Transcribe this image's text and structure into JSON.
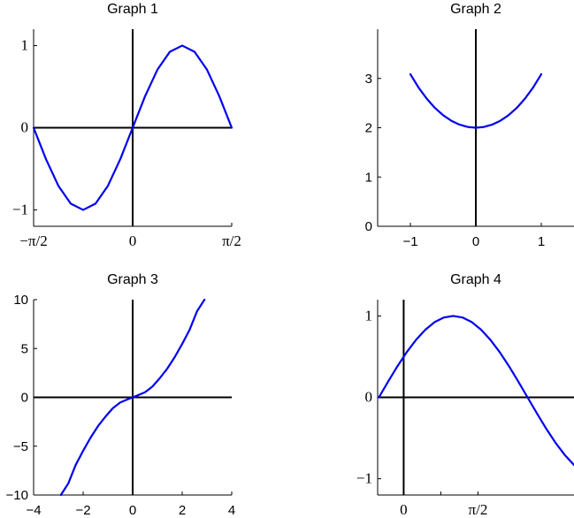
{
  "colors": {
    "curve": "#0000ee",
    "axis": "#000000"
  },
  "chart_data": [
    {
      "type": "line",
      "title": "Graph 1",
      "xlabel": "",
      "ylabel": "",
      "xlim": [
        -1.5708,
        1.5708
      ],
      "ylim": [
        -1.2,
        1.2
      ],
      "x_ticks": [
        {
          "value": -1.5708,
          "label": "−π/2"
        },
        {
          "value": 0,
          "label": "0"
        },
        {
          "value": 1.5708,
          "label": "π/2"
        }
      ],
      "y_ticks": [
        {
          "value": -1,
          "label": "−1"
        },
        {
          "value": 0,
          "label": "0"
        },
        {
          "value": 1,
          "label": "1"
        }
      ],
      "series": [
        {
          "x": [
            -1.5708,
            -1.3744,
            -1.1781,
            -0.9817,
            -0.7854,
            -0.589,
            -0.3927,
            -0.1963,
            0,
            0.1963,
            0.3927,
            0.589,
            0.7854,
            0.9817,
            1.1781,
            1.3744,
            1.5708
          ],
          "y": [
            0,
            -0.3827,
            -0.7071,
            -0.9239,
            -1,
            -0.9239,
            -0.7071,
            -0.3827,
            0,
            0.3827,
            0.7071,
            0.9239,
            1,
            0.9239,
            0.7071,
            0.3827,
            0
          ]
        }
      ]
    },
    {
      "type": "line",
      "title": "Graph 2",
      "xlabel": "",
      "ylabel": "",
      "xlim": [
        -1.5,
        1.5
      ],
      "ylim": [
        0,
        4
      ],
      "x_ticks": [
        {
          "value": -1,
          "label": "−1"
        },
        {
          "value": 0,
          "label": "0"
        },
        {
          "value": 1,
          "label": "1"
        }
      ],
      "y_ticks": [
        {
          "value": 0,
          "label": "0"
        },
        {
          "value": 1,
          "label": "1"
        },
        {
          "value": 2,
          "label": "2"
        },
        {
          "value": 3,
          "label": "3"
        }
      ],
      "series": [
        {
          "x": [
            -1,
            -0.875,
            -0.75,
            -0.625,
            -0.5,
            -0.375,
            -0.25,
            -0.125,
            0,
            0.125,
            0.25,
            0.375,
            0.5,
            0.625,
            0.75,
            0.875,
            1
          ],
          "y": [
            3.086,
            2.815,
            2.589,
            2.402,
            2.255,
            2.142,
            2.063,
            2.016,
            2.0,
            2.016,
            2.063,
            2.142,
            2.255,
            2.402,
            2.589,
            2.815,
            3.086
          ]
        }
      ]
    },
    {
      "type": "line",
      "title": "Graph 3",
      "xlabel": "",
      "ylabel": "",
      "xlim": [
        -4,
        4
      ],
      "ylim": [
        -10,
        10
      ],
      "x_ticks": [
        {
          "value": -4,
          "label": "−4"
        },
        {
          "value": -2,
          "label": "−2"
        },
        {
          "value": 0,
          "label": "0"
        },
        {
          "value": 2,
          "label": "2"
        },
        {
          "value": 4,
          "label": "4"
        }
      ],
      "y_ticks": [
        {
          "value": -10,
          "label": "−10"
        },
        {
          "value": -5,
          "label": "−5"
        },
        {
          "value": 0,
          "label": "0"
        },
        {
          "value": 5,
          "label": "5"
        },
        {
          "value": 10,
          "label": "10"
        }
      ],
      "series": [
        {
          "x": [
            -2.9,
            -2.6,
            -2.3,
            -2.0,
            -1.7,
            -1.4,
            -1.1,
            -0.8,
            -0.5,
            -0.2,
            0,
            0.2,
            0.5,
            0.8,
            1.1,
            1.4,
            1.7,
            2.0,
            2.3,
            2.6,
            2.9
          ],
          "y": [
            -10,
            -8.82,
            -6.92,
            -5.47,
            -4.13,
            -2.95,
            -1.98,
            -1.11,
            -0.52,
            -0.2,
            0,
            0.2,
            0.52,
            1.11,
            1.98,
            2.95,
            4.13,
            5.47,
            6.92,
            8.82,
            10
          ]
        }
      ]
    },
    {
      "type": "line",
      "title": "Graph 4",
      "xlabel": "",
      "ylabel": "",
      "xlim": [
        -0.55,
        3.6
      ],
      "ylim": [
        -1.2,
        1.2
      ],
      "x_ticks": [
        {
          "value": 0,
          "label": "0"
        },
        {
          "value": 0.785,
          "label": "",
          "minor": true
        },
        {
          "value": 1.5708,
          "label": "π/2"
        }
      ],
      "y_ticks": [
        {
          "value": -1,
          "label": "−1"
        },
        {
          "value": 0,
          "label": "0"
        },
        {
          "value": 1,
          "label": "1"
        }
      ],
      "series": [
        {
          "x": [
            -0.5236,
            -0.3272,
            -0.1309,
            0.0654,
            0.2618,
            0.4581,
            0.6545,
            0.8508,
            1.0472,
            1.2435,
            1.4399,
            1.6362,
            1.8326,
            2.0289,
            2.2253,
            2.4216,
            2.618,
            2.8143,
            3.0107,
            3.207,
            3.4034,
            3.5997
          ],
          "y": [
            0,
            0.195,
            0.383,
            0.556,
            0.707,
            0.831,
            0.924,
            0.981,
            1.0,
            0.981,
            0.924,
            0.831,
            0.707,
            0.556,
            0.383,
            0.195,
            0,
            -0.195,
            -0.383,
            -0.556,
            -0.707,
            -0.831
          ]
        }
      ]
    }
  ]
}
